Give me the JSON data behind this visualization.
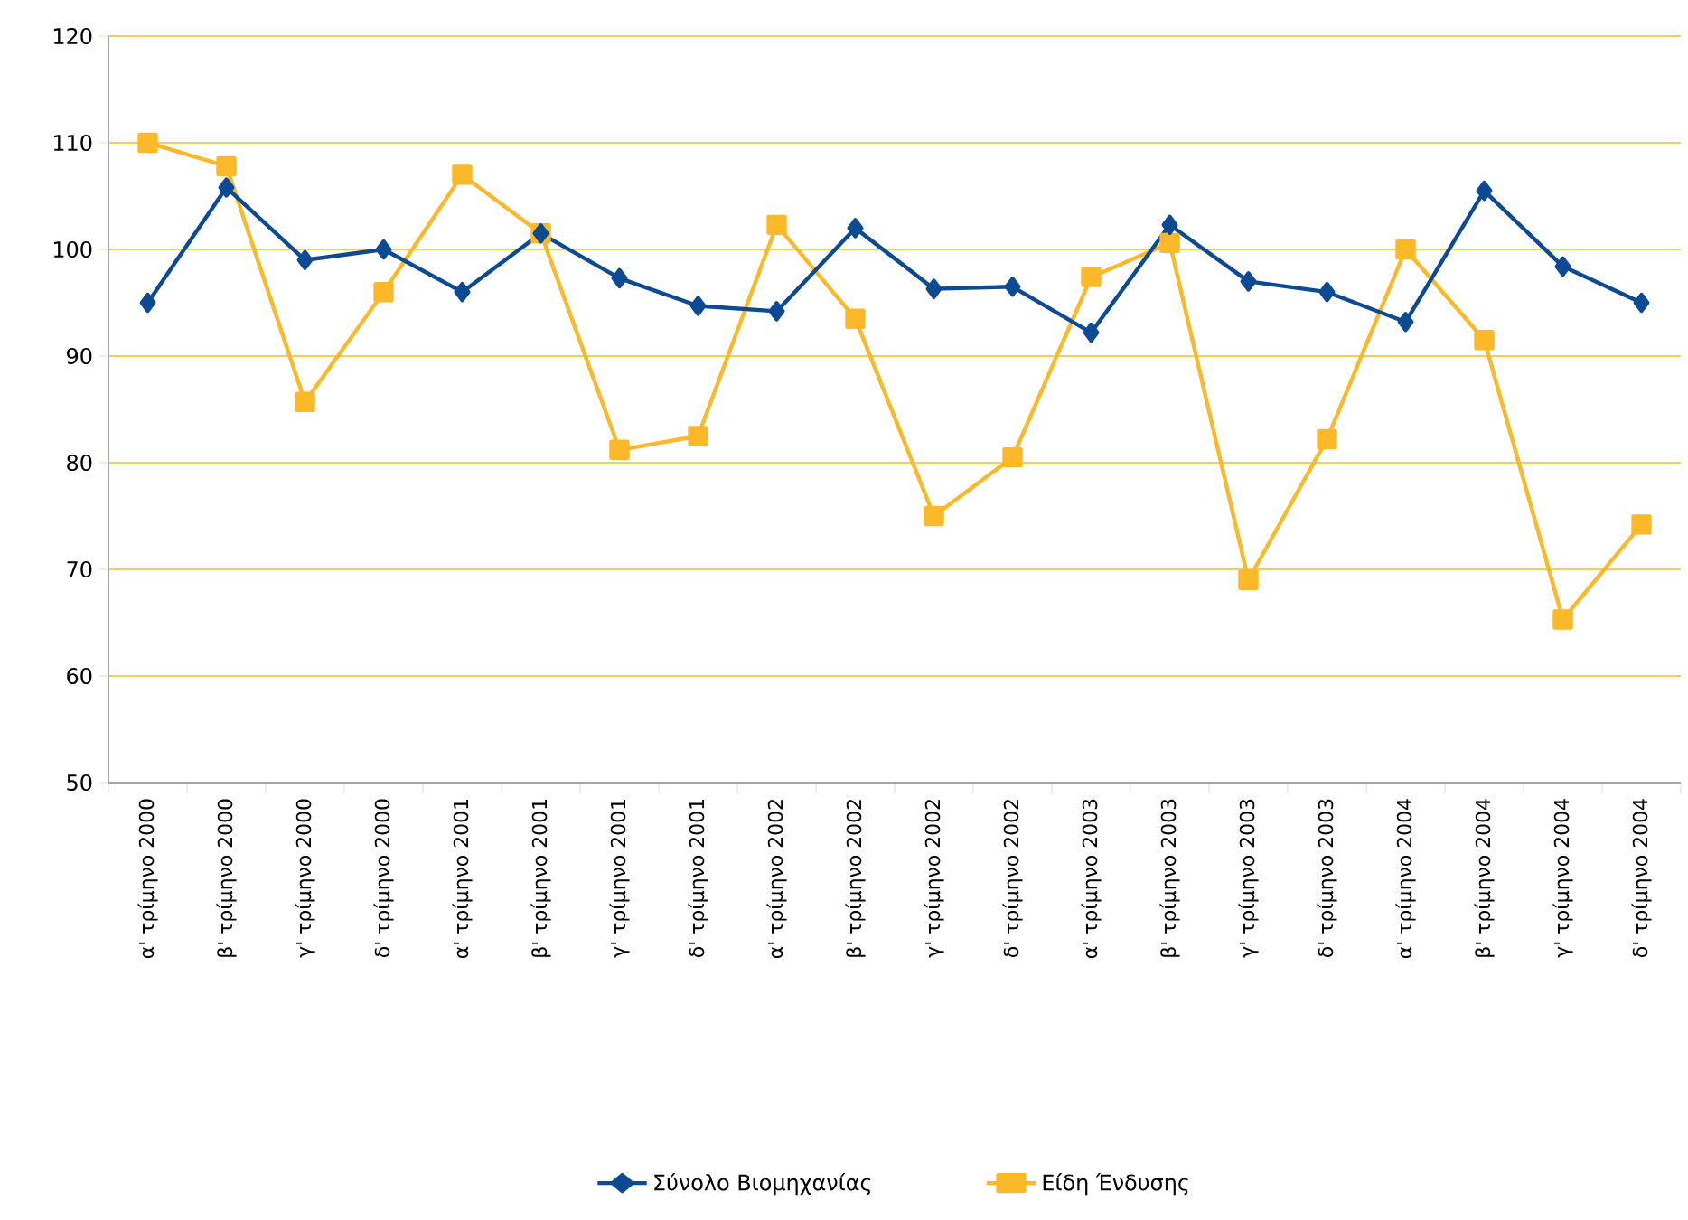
{
  "chart_data": {
    "type": "line",
    "categories": [
      "α' τρίμηνο 2000",
      "β' τρίμηνο 2000",
      "γ' τρίμηνο 2000",
      "δ' τρίμηνο 2000",
      "α' τρίμηνο 2001",
      "β' τρίμηνο 2001",
      "γ' τρίμηνο 2001",
      "δ' τρίμηνο 2001",
      "α' τρίμηνο 2002",
      "β' τρίμηνο 2002",
      "γ' τρίμηνο 2002",
      "δ' τρίμηνο 2002",
      "α' τρίμηνο 2003",
      "β' τρίμηνο 2003",
      "γ' τρίμηνο 2003",
      "δ' τρίμηνο 2003",
      "α' τρίμηνο 2004",
      "β' τρίμηνο 2004",
      "γ' τρίμηνο 2004",
      "δ' τρίμηνο 2004"
    ],
    "series": [
      {
        "name": "Σύνολο Βιομηχανίας",
        "color": "#0d4a94",
        "marker": "diamond",
        "values": [
          95,
          105.8,
          99,
          100,
          96,
          101.5,
          97.3,
          94.7,
          94.2,
          102,
          96.3,
          96.5,
          92.2,
          102.3,
          97,
          96,
          93.2,
          105.5,
          98.4,
          95
        ]
      },
      {
        "name": "Είδη Ένδυσης",
        "color": "#fbb829",
        "marker": "square",
        "values": [
          110,
          107.8,
          85.7,
          96,
          107,
          101.5,
          81.2,
          82.5,
          102.3,
          93.5,
          75,
          80.5,
          97.4,
          100.6,
          69,
          82.2,
          100,
          91.5,
          65.3,
          74.2
        ]
      }
    ],
    "ylim": [
      50,
      120
    ],
    "yticks": [
      50,
      60,
      70,
      80,
      90,
      100,
      110,
      120
    ],
    "grid": "y",
    "legend": "bottom",
    "line_style": "solid"
  }
}
